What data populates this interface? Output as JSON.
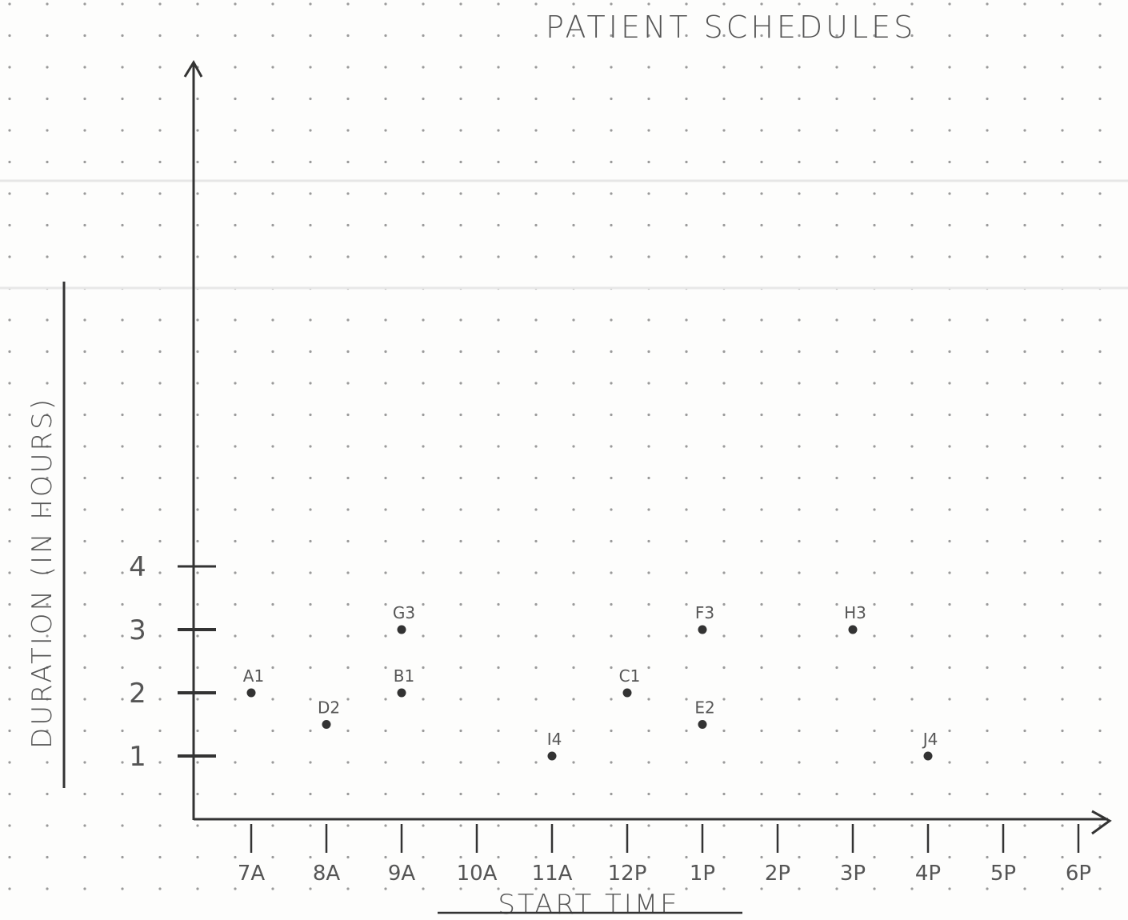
{
  "chart_data": {
    "type": "scatter",
    "title": "PATIENT SCHEDULES",
    "xlabel": "START TIME",
    "ylabel": "DURATION (IN HOURS)",
    "x_ticks": [
      "7A",
      "8A",
      "9A",
      "10A",
      "11A",
      "12P",
      "1P",
      "2P",
      "3P",
      "4P",
      "5P",
      "6P"
    ],
    "y_ticks": [
      1,
      2,
      3,
      4
    ],
    "xlim": [
      "6:15A",
      "6:30P"
    ],
    "ylim": [
      0,
      12
    ],
    "grid": "dotted paper",
    "points": [
      {
        "label": "A1",
        "x": "7A",
        "y": 2
      },
      {
        "label": "D2",
        "x": "8A",
        "y": 1.5
      },
      {
        "label": "G3",
        "x": "9A",
        "y": 3
      },
      {
        "label": "B1",
        "x": "9A",
        "y": 2
      },
      {
        "label": "I4",
        "x": "11A",
        "y": 1
      },
      {
        "label": "C1",
        "x": "12P",
        "y": 2
      },
      {
        "label": "F3",
        "x": "1P",
        "y": 3
      },
      {
        "label": "E2",
        "x": "1P",
        "y": 1.5
      },
      {
        "label": "H3",
        "x": "3P",
        "y": 3
      },
      {
        "label": "J4",
        "x": "4P",
        "y": 1
      }
    ],
    "colors": {
      "ink": "#333333",
      "paper": "#fdfdfc",
      "dot": "#9a9a9a",
      "label": "#555555"
    }
  }
}
